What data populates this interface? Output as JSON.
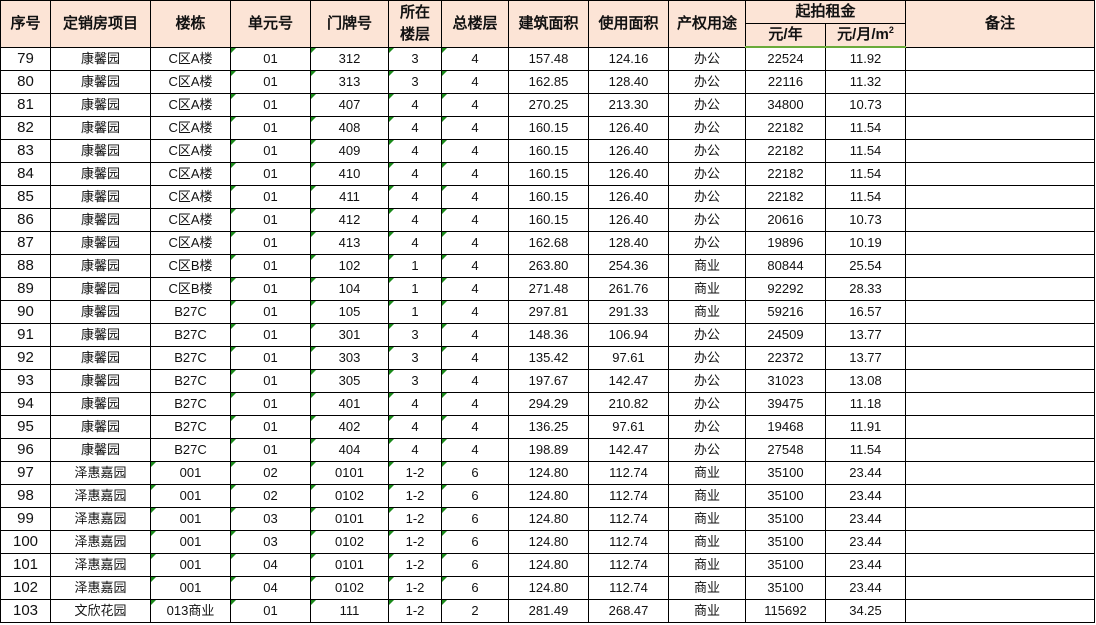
{
  "header": {
    "cols": [
      "序号",
      "定销房项目",
      "楼栋",
      "单元号",
      "门牌号",
      "所在楼层",
      "总楼层",
      "建筑面积",
      "使用面积",
      "产权用途"
    ],
    "floor_line1": "所在",
    "floor_line2": "楼层",
    "rent_group": "起拍租金",
    "rent_year": "元/年",
    "rent_month": "元/月/m",
    "rent_month_sup": "2",
    "remarks": "备注"
  },
  "colors": {
    "header_bg": "#fce4d6",
    "header_rule": "#6aaa3a",
    "error_triangle": "#1a8a1a"
  },
  "rows": [
    [
      "79",
      "康馨园",
      "C区A楼",
      "01",
      "312",
      "3",
      "4",
      "157.48",
      "124.16",
      "办公",
      "22524",
      "11.92",
      ""
    ],
    [
      "80",
      "康馨园",
      "C区A楼",
      "01",
      "313",
      "3",
      "4",
      "162.85",
      "128.40",
      "办公",
      "22116",
      "11.32",
      ""
    ],
    [
      "81",
      "康馨园",
      "C区A楼",
      "01",
      "407",
      "4",
      "4",
      "270.25",
      "213.30",
      "办公",
      "34800",
      "10.73",
      ""
    ],
    [
      "82",
      "康馨园",
      "C区A楼",
      "01",
      "408",
      "4",
      "4",
      "160.15",
      "126.40",
      "办公",
      "22182",
      "11.54",
      ""
    ],
    [
      "83",
      "康馨园",
      "C区A楼",
      "01",
      "409",
      "4",
      "4",
      "160.15",
      "126.40",
      "办公",
      "22182",
      "11.54",
      ""
    ],
    [
      "84",
      "康馨园",
      "C区A楼",
      "01",
      "410",
      "4",
      "4",
      "160.15",
      "126.40",
      "办公",
      "22182",
      "11.54",
      ""
    ],
    [
      "85",
      "康馨园",
      "C区A楼",
      "01",
      "411",
      "4",
      "4",
      "160.15",
      "126.40",
      "办公",
      "22182",
      "11.54",
      ""
    ],
    [
      "86",
      "康馨园",
      "C区A楼",
      "01",
      "412",
      "4",
      "4",
      "160.15",
      "126.40",
      "办公",
      "20616",
      "10.73",
      ""
    ],
    [
      "87",
      "康馨园",
      "C区A楼",
      "01",
      "413",
      "4",
      "4",
      "162.68",
      "128.40",
      "办公",
      "19896",
      "10.19",
      ""
    ],
    [
      "88",
      "康馨园",
      "C区B楼",
      "01",
      "102",
      "1",
      "4",
      "263.80",
      "254.36",
      "商业",
      "80844",
      "25.54",
      ""
    ],
    [
      "89",
      "康馨园",
      "C区B楼",
      "01",
      "104",
      "1",
      "4",
      "271.48",
      "261.76",
      "商业",
      "92292",
      "28.33",
      ""
    ],
    [
      "90",
      "康馨园",
      "B27C",
      "01",
      "105",
      "1",
      "4",
      "297.81",
      "291.33",
      "商业",
      "59216",
      "16.57",
      ""
    ],
    [
      "91",
      "康馨园",
      "B27C",
      "01",
      "301",
      "3",
      "4",
      "148.36",
      "106.94",
      "办公",
      "24509",
      "13.77",
      ""
    ],
    [
      "92",
      "康馨园",
      "B27C",
      "01",
      "303",
      "3",
      "4",
      "135.42",
      "97.61",
      "办公",
      "22372",
      "13.77",
      ""
    ],
    [
      "93",
      "康馨园",
      "B27C",
      "01",
      "305",
      "3",
      "4",
      "197.67",
      "142.47",
      "办公",
      "31023",
      "13.08",
      ""
    ],
    [
      "94",
      "康馨园",
      "B27C",
      "01",
      "401",
      "4",
      "4",
      "294.29",
      "210.82",
      "办公",
      "39475",
      "11.18",
      ""
    ],
    [
      "95",
      "康馨园",
      "B27C",
      "01",
      "402",
      "4",
      "4",
      "136.25",
      "97.61",
      "办公",
      "19468",
      "11.91",
      ""
    ],
    [
      "96",
      "康馨园",
      "B27C",
      "01",
      "404",
      "4",
      "4",
      "198.89",
      "142.47",
      "办公",
      "27548",
      "11.54",
      ""
    ],
    [
      "97",
      "泽惠嘉园",
      "001",
      "02",
      "0101",
      "1-2",
      "6",
      "124.80",
      "112.74",
      "商业",
      "35100",
      "23.44",
      ""
    ],
    [
      "98",
      "泽惠嘉园",
      "001",
      "02",
      "0102",
      "1-2",
      "6",
      "124.80",
      "112.74",
      "商业",
      "35100",
      "23.44",
      ""
    ],
    [
      "99",
      "泽惠嘉园",
      "001",
      "03",
      "0101",
      "1-2",
      "6",
      "124.80",
      "112.74",
      "商业",
      "35100",
      "23.44",
      ""
    ],
    [
      "100",
      "泽惠嘉园",
      "001",
      "03",
      "0102",
      "1-2",
      "6",
      "124.80",
      "112.74",
      "商业",
      "35100",
      "23.44",
      ""
    ],
    [
      "101",
      "泽惠嘉园",
      "001",
      "04",
      "0101",
      "1-2",
      "6",
      "124.80",
      "112.74",
      "商业",
      "35100",
      "23.44",
      ""
    ],
    [
      "102",
      "泽惠嘉园",
      "001",
      "04",
      "0102",
      "1-2",
      "6",
      "124.80",
      "112.74",
      "商业",
      "35100",
      "23.44",
      ""
    ],
    [
      "103",
      "文欣花园",
      "013商业",
      "01",
      "111",
      "1-2",
      "2",
      "281.49",
      "268.47",
      "商业",
      "115692",
      "34.25",
      ""
    ]
  ]
}
